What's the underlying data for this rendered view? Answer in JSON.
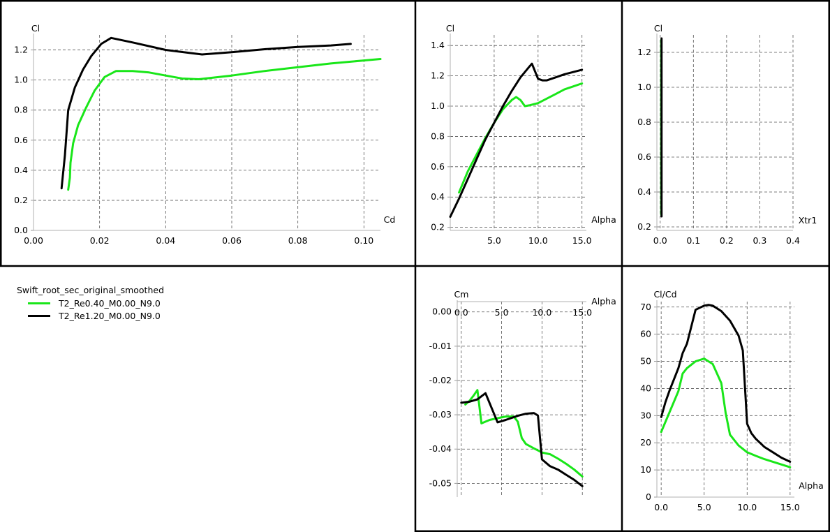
{
  "legend": {
    "title": "Swift_root_sec_original_smoothed",
    "entries": [
      {
        "label": "T2_Re0.40_M0.00_N9.0",
        "color": "#19e619"
      },
      {
        "label": "T2_Re1.20_M0.00_N9.0",
        "color": "#000000"
      }
    ]
  },
  "chart_data": [
    {
      "id": "cl-cd",
      "type": "line",
      "xlabel": "Cd",
      "ylabel": "Cl",
      "xlim": [
        0,
        0.105
      ],
      "ylim": [
        0,
        1.3
      ],
      "xticks": [
        0.0,
        0.02,
        0.04,
        0.06,
        0.08,
        0.1
      ],
      "xdec": 2,
      "yticks": [
        0.0,
        0.2,
        0.4,
        0.6,
        0.8,
        1.0,
        1.2
      ],
      "ydec": 1,
      "grid": true,
      "series": [
        {
          "name": "T2_Re0.40_M0.00_N9.0",
          "color": "#19e619",
          "points": [
            [
              0.0105,
              0.27
            ],
            [
              0.011,
              0.35
            ],
            [
              0.0112,
              0.45
            ],
            [
              0.012,
              0.58
            ],
            [
              0.0135,
              0.7
            ],
            [
              0.016,
              0.82
            ],
            [
              0.0185,
              0.93
            ],
            [
              0.0215,
              1.02
            ],
            [
              0.025,
              1.06
            ],
            [
              0.03,
              1.06
            ],
            [
              0.035,
              1.05
            ],
            [
              0.04,
              1.03
            ],
            [
              0.045,
              1.01
            ],
            [
              0.05,
              1.005
            ],
            [
              0.06,
              1.03
            ],
            [
              0.07,
              1.06
            ],
            [
              0.08,
              1.085
            ],
            [
              0.09,
              1.11
            ],
            [
              0.1,
              1.13
            ],
            [
              0.105,
              1.14
            ]
          ]
        },
        {
          "name": "T2_Re1.20_M0.00_N9.0",
          "color": "#000000",
          "points": [
            [
              0.0085,
              0.28
            ],
            [
              0.0095,
              0.5
            ],
            [
              0.0105,
              0.8
            ],
            [
              0.0125,
              0.95
            ],
            [
              0.015,
              1.07
            ],
            [
              0.0175,
              1.16
            ],
            [
              0.0205,
              1.24
            ],
            [
              0.0235,
              1.28
            ],
            [
              0.03,
              1.25
            ],
            [
              0.04,
              1.2
            ],
            [
              0.051,
              1.17
            ],
            [
              0.06,
              1.185
            ],
            [
              0.07,
              1.205
            ],
            [
              0.08,
              1.22
            ],
            [
              0.09,
              1.23
            ],
            [
              0.096,
              1.24
            ]
          ]
        }
      ]
    },
    {
      "id": "cl-alpha",
      "type": "line",
      "xlabel": "Alpha",
      "ylabel": "Cl",
      "xlim": [
        0,
        15.5
      ],
      "ylim": [
        0.18,
        1.47
      ],
      "xticks": [
        5.0,
        10.0,
        15.0
      ],
      "xdec": 1,
      "yticks": [
        0.2,
        0.4,
        0.6,
        0.8,
        1.0,
        1.2,
        1.4
      ],
      "ydec": 1,
      "grid": true,
      "series": [
        {
          "name": "T2_Re0.40_M0.00_N9.0",
          "color": "#19e619",
          "points": [
            [
              1.0,
              0.43
            ],
            [
              1.5,
              0.5
            ],
            [
              2.0,
              0.57
            ],
            [
              3.0,
              0.68
            ],
            [
              4.0,
              0.79
            ],
            [
              5.0,
              0.89
            ],
            [
              6.0,
              0.98
            ],
            [
              7.0,
              1.04
            ],
            [
              7.5,
              1.06
            ],
            [
              8.0,
              1.04
            ],
            [
              8.5,
              1.0
            ],
            [
              9.0,
              1.005
            ],
            [
              10.0,
              1.02
            ],
            [
              11.0,
              1.05
            ],
            [
              12.0,
              1.08
            ],
            [
              13.0,
              1.11
            ],
            [
              14.0,
              1.13
            ],
            [
              15.0,
              1.15
            ]
          ]
        },
        {
          "name": "T2_Re1.20_M0.00_N9.0",
          "color": "#000000",
          "points": [
            [
              0.0,
              0.27
            ],
            [
              1.0,
              0.39
            ],
            [
              2.0,
              0.52
            ],
            [
              3.0,
              0.65
            ],
            [
              4.0,
              0.78
            ],
            [
              5.0,
              0.89
            ],
            [
              6.0,
              1.0
            ],
            [
              7.0,
              1.1
            ],
            [
              8.0,
              1.19
            ],
            [
              9.0,
              1.26
            ],
            [
              9.3,
              1.28
            ],
            [
              10.0,
              1.18
            ],
            [
              10.5,
              1.17
            ],
            [
              11.0,
              1.17
            ],
            [
              12.0,
              1.19
            ],
            [
              13.0,
              1.21
            ],
            [
              14.0,
              1.225
            ],
            [
              15.0,
              1.24
            ]
          ]
        }
      ]
    },
    {
      "id": "cl-xtr1",
      "type": "line",
      "xlabel": "Xtr1",
      "ylabel": "Cl",
      "xlim": [
        -0.01,
        0.4
      ],
      "ylim": [
        0.18,
        1.3
      ],
      "xticks": [
        0.0,
        0.1,
        0.2,
        0.3,
        0.4
      ],
      "xdec": 1,
      "yticks": [
        0.2,
        0.4,
        0.6,
        0.8,
        1.0,
        1.2
      ],
      "ydec": 1,
      "grid": true,
      "series": [
        {
          "name": "T2_Re0.40_M0.00_N9.0",
          "color": "#19e619",
          "points": [
            [
              0.003,
              0.27
            ],
            [
              0.003,
              1.27
            ]
          ]
        },
        {
          "name": "T2_Re1.20_M0.00_N9.0",
          "color": "#000000",
          "points": [
            [
              0.004,
              0.26
            ],
            [
              0.004,
              1.28
            ]
          ]
        }
      ]
    },
    {
      "id": "cm-alpha",
      "type": "line",
      "xlabel": "Alpha",
      "ylabel": "Cm",
      "xlim": [
        -0.5,
        15.5
      ],
      "ylim": [
        -0.054,
        0.003
      ],
      "xticks": [
        0.0,
        5.0,
        10.0,
        15.0
      ],
      "xdec": 1,
      "yticks": [
        0.0,
        -0.01,
        -0.02,
        -0.03,
        -0.04,
        -0.05
      ],
      "ydec": 2,
      "grid": true,
      "series": [
        {
          "name": "T2_Re0.40_M0.00_N9.0",
          "color": "#19e619",
          "points": [
            [
              0.5,
              -0.027
            ],
            [
              1.0,
              -0.026
            ],
            [
              1.5,
              -0.0245
            ],
            [
              2.0,
              -0.0228
            ],
            [
              2.5,
              -0.0325
            ],
            [
              3.5,
              -0.0315
            ],
            [
              4.5,
              -0.031
            ],
            [
              5.5,
              -0.0305
            ],
            [
              6.5,
              -0.0305
            ],
            [
              7.0,
              -0.032
            ],
            [
              7.5,
              -0.0368
            ],
            [
              8.0,
              -0.0385
            ],
            [
              9.0,
              -0.0398
            ],
            [
              10.0,
              -0.041
            ],
            [
              11.0,
              -0.0415
            ],
            [
              12.0,
              -0.0428
            ],
            [
              13.0,
              -0.0443
            ],
            [
              14.0,
              -0.046
            ],
            [
              15.0,
              -0.048
            ]
          ]
        },
        {
          "name": "T2_Re1.20_M0.00_N9.0",
          "color": "#000000",
          "points": [
            [
              0.0,
              -0.0265
            ],
            [
              1.0,
              -0.0262
            ],
            [
              2.0,
              -0.0255
            ],
            [
              3.0,
              -0.0237
            ],
            [
              4.5,
              -0.0322
            ],
            [
              5.5,
              -0.0315
            ],
            [
              7.0,
              -0.0303
            ],
            [
              8.0,
              -0.0297
            ],
            [
              9.0,
              -0.0295
            ],
            [
              9.5,
              -0.0302
            ],
            [
              10.0,
              -0.043
            ],
            [
              11.0,
              -0.045
            ],
            [
              12.0,
              -0.046
            ],
            [
              13.0,
              -0.0475
            ],
            [
              14.0,
              -0.049
            ],
            [
              15.0,
              -0.0508
            ]
          ]
        }
      ]
    },
    {
      "id": "clcd-alpha",
      "type": "line",
      "xlabel": "Alpha",
      "ylabel": "Cl/Cd",
      "xlim": [
        -0.5,
        15.5
      ],
      "ylim": [
        0,
        72
      ],
      "xticks": [
        0.0,
        5.0,
        10.0,
        15.0
      ],
      "xdec": 1,
      "yticks": [
        0,
        10,
        20,
        30,
        40,
        50,
        60,
        70
      ],
      "ydec": 0,
      "grid": true,
      "series": [
        {
          "name": "T2_Re0.40_M0.00_N9.0",
          "color": "#19e619",
          "points": [
            [
              0.0,
              24
            ],
            [
              1.0,
              31.5
            ],
            [
              2.0,
              39
            ],
            [
              2.5,
              45.5
            ],
            [
              3.0,
              47.5
            ],
            [
              4.0,
              50
            ],
            [
              5.0,
              51
            ],
            [
              6.0,
              49
            ],
            [
              7.0,
              42
            ],
            [
              7.5,
              31
            ],
            [
              8.0,
              23
            ],
            [
              9.0,
              19
            ],
            [
              10.0,
              16.5
            ],
            [
              11.0,
              15.2
            ],
            [
              12.0,
              14
            ],
            [
              13.0,
              13
            ],
            [
              14.0,
              12
            ],
            [
              15.0,
              11
            ]
          ]
        },
        {
          "name": "T2_Re1.20_M0.00_N9.0",
          "color": "#000000",
          "points": [
            [
              0.0,
              29.5
            ],
            [
              0.5,
              35
            ],
            [
              1.0,
              39.5
            ],
            [
              2.0,
              47.5
            ],
            [
              2.5,
              53
            ],
            [
              3.0,
              56.5
            ],
            [
              4.0,
              69
            ],
            [
              5.0,
              70.5
            ],
            [
              5.5,
              70.8
            ],
            [
              6.0,
              70.5
            ],
            [
              7.0,
              68.5
            ],
            [
              8.0,
              65
            ],
            [
              9.0,
              59.5
            ],
            [
              9.5,
              54
            ],
            [
              10.0,
              27
            ],
            [
              10.5,
              23.5
            ],
            [
              11.0,
              21.5
            ],
            [
              12.0,
              18.5
            ],
            [
              13.0,
              16.5
            ],
            [
              14.0,
              14.5
            ],
            [
              15.0,
              13
            ]
          ]
        }
      ]
    }
  ]
}
